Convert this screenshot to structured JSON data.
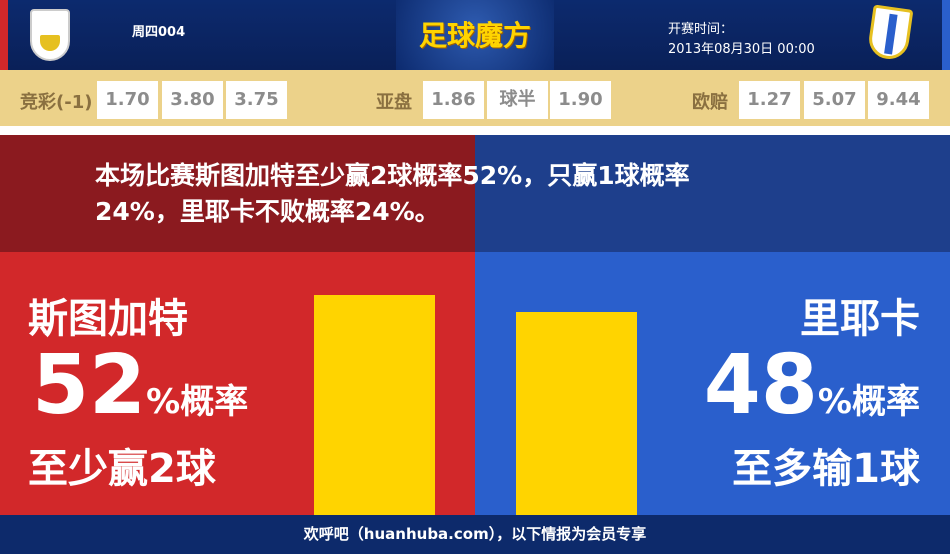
{
  "header": {
    "match_no": "周四004",
    "logo_text": "足球魔方",
    "time_label": "开赛时间：",
    "time_value": "2013年08月30日 00:00",
    "home_crest": "vfb-stuttgart-crest",
    "away_crest": "hnk-rijeka-crest"
  },
  "odds": {
    "jingcai": {
      "label": "竞彩(-1)",
      "values": [
        "1.70",
        "3.80",
        "3.75"
      ]
    },
    "asian": {
      "label": "亚盘",
      "values": [
        "1.86",
        "球半",
        "1.90"
      ]
    },
    "euro": {
      "label": "欧赔",
      "values": [
        "1.27",
        "5.07",
        "9.44"
      ]
    }
  },
  "summary": {
    "line1": "本场比赛斯图加特至少赢2球概率52%，只赢1球概率",
    "line2": "24%，里耶卡不败概率24%。"
  },
  "home": {
    "team": "斯图加特",
    "percent": "52",
    "percent_suffix": "%概率",
    "result": "至少赢2球",
    "probability": 52
  },
  "away": {
    "team": "里耶卡",
    "percent": "48",
    "percent_suffix": "%概率",
    "result": "至多输1球",
    "probability": 48
  },
  "footer": {
    "text": "欢呼吧（huanhuba.com），以下情报为会员专享"
  },
  "colors": {
    "home": "#d2282a",
    "away": "#2a5fcc",
    "bar": "#ffd400",
    "odds_bg": "#ecd28a"
  }
}
